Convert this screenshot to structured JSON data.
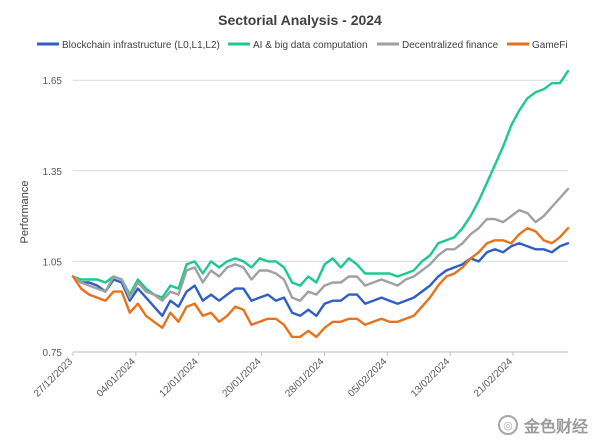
{
  "chart_data": {
    "type": "line",
    "title": "Sectorial Analysis - 2024",
    "ylabel": "Performance",
    "xlabel": "",
    "ylim": [
      0.75,
      1.75
    ],
    "yticks": [
      0.75,
      1.05,
      1.35,
      1.65
    ],
    "ytick_labels": [
      "0.75",
      "1.05",
      "1.35",
      "1.65"
    ],
    "x_start": "2023-12-27",
    "x_end": "2024-02-28",
    "xticks": [
      "2023-12-27",
      "2024-01-04",
      "2024-01-12",
      "2024-01-20",
      "2024-01-28",
      "2024-02-05",
      "2024-02-13",
      "2024-02-21"
    ],
    "xtick_labels": [
      "27/12/2023",
      "04/01/2024",
      "12/01/2024",
      "20/01/2024",
      "28/01/2024",
      "05/02/2024",
      "13/02/2024",
      "21/02/2024"
    ],
    "grid": "horizontal",
    "legend": "top",
    "series": [
      {
        "name": "Blockchain infrastructure (L0,L1,L2)",
        "color": "#2f5ec4",
        "values": [
          1.0,
          0.98,
          0.98,
          0.97,
          0.95,
          0.99,
          0.98,
          0.92,
          0.96,
          0.93,
          0.9,
          0.87,
          0.92,
          0.9,
          0.95,
          0.97,
          0.92,
          0.94,
          0.92,
          0.94,
          0.96,
          0.96,
          0.92,
          0.93,
          0.94,
          0.92,
          0.93,
          0.88,
          0.87,
          0.89,
          0.87,
          0.91,
          0.92,
          0.92,
          0.94,
          0.94,
          0.91,
          0.92,
          0.93,
          0.92,
          0.91,
          0.92,
          0.93,
          0.95,
          0.97,
          1.0,
          1.02,
          1.03,
          1.04,
          1.06,
          1.05,
          1.08,
          1.09,
          1.08,
          1.1,
          1.11,
          1.1,
          1.09,
          1.09,
          1.08,
          1.1,
          1.11
        ]
      },
      {
        "name": "AI & big data computation",
        "color": "#1ec98d",
        "values": [
          1.0,
          0.99,
          0.99,
          0.99,
          0.98,
          1.0,
          0.99,
          0.94,
          0.99,
          0.96,
          0.94,
          0.93,
          0.97,
          0.96,
          1.04,
          1.05,
          1.01,
          1.05,
          1.03,
          1.05,
          1.06,
          1.05,
          1.03,
          1.06,
          1.05,
          1.05,
          1.03,
          0.98,
          0.97,
          1.0,
          0.98,
          1.04,
          1.06,
          1.03,
          1.06,
          1.04,
          1.01,
          1.01,
          1.01,
          1.01,
          1.0,
          1.01,
          1.02,
          1.05,
          1.07,
          1.11,
          1.12,
          1.13,
          1.16,
          1.2,
          1.25,
          1.31,
          1.37,
          1.43,
          1.5,
          1.55,
          1.59,
          1.61,
          1.62,
          1.64,
          1.64,
          1.68
        ]
      },
      {
        "name": "Decentralized finance",
        "color": "#a0a0a0",
        "values": [
          1.0,
          0.98,
          0.97,
          0.96,
          0.95,
          1.0,
          0.99,
          0.93,
          0.98,
          0.95,
          0.94,
          0.92,
          0.95,
          0.94,
          1.02,
          1.03,
          0.98,
          1.02,
          1.0,
          1.03,
          1.04,
          1.03,
          0.99,
          1.02,
          1.02,
          1.01,
          0.99,
          0.93,
          0.92,
          0.95,
          0.94,
          0.97,
          0.98,
          0.98,
          1.0,
          1.0,
          0.97,
          0.98,
          0.99,
          0.98,
          0.97,
          0.99,
          1.0,
          1.02,
          1.04,
          1.07,
          1.09,
          1.09,
          1.11,
          1.14,
          1.16,
          1.19,
          1.19,
          1.18,
          1.2,
          1.22,
          1.21,
          1.18,
          1.2,
          1.23,
          1.26,
          1.29
        ]
      },
      {
        "name": "GameFi",
        "color": "#e8721c",
        "values": [
          1.0,
          0.96,
          0.94,
          0.93,
          0.92,
          0.95,
          0.95,
          0.88,
          0.91,
          0.87,
          0.85,
          0.83,
          0.88,
          0.85,
          0.9,
          0.91,
          0.87,
          0.88,
          0.85,
          0.87,
          0.9,
          0.89,
          0.84,
          0.85,
          0.86,
          0.86,
          0.84,
          0.8,
          0.8,
          0.82,
          0.8,
          0.83,
          0.85,
          0.85,
          0.86,
          0.86,
          0.84,
          0.85,
          0.86,
          0.85,
          0.85,
          0.86,
          0.87,
          0.9,
          0.93,
          0.97,
          1.0,
          1.01,
          1.03,
          1.06,
          1.08,
          1.11,
          1.12,
          1.12,
          1.11,
          1.14,
          1.16,
          1.15,
          1.12,
          1.11,
          1.13,
          1.16
        ]
      }
    ]
  },
  "watermark": {
    "text": "金色财经"
  }
}
